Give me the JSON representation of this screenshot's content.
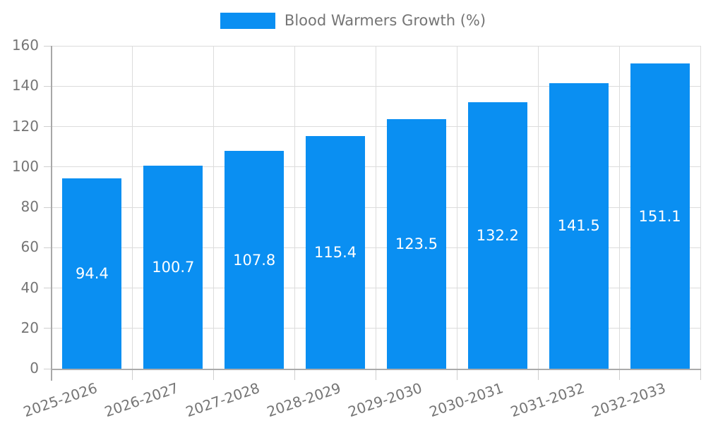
{
  "chart_data": {
    "type": "bar",
    "title": "Blood Warmers Growth (%)",
    "categories": [
      "2025-2026",
      "2026-2027",
      "2027-2028",
      "2028-2029",
      "2029-2030",
      "2030-2031",
      "2031-2032",
      "2032-2033"
    ],
    "values": [
      94.4,
      100.7,
      107.8,
      115.4,
      123.5,
      132.2,
      141.5,
      151.1
    ],
    "xlabel": "",
    "ylabel": "",
    "ylim": [
      0,
      160
    ],
    "ytick_step": 20,
    "ytick_labels": [
      "0",
      "20",
      "40",
      "60",
      "80",
      "100",
      "120",
      "140",
      "160"
    ],
    "grid": true,
    "legend_position": "top-center",
    "bar_color": "#0a8ff2",
    "value_label_color": "#ffffff",
    "axis_text_color": "#757575",
    "gridline_color": "#dcdcdc",
    "axis_line_color": "#a8a8a8",
    "tick_color": "#cfcfcf"
  }
}
